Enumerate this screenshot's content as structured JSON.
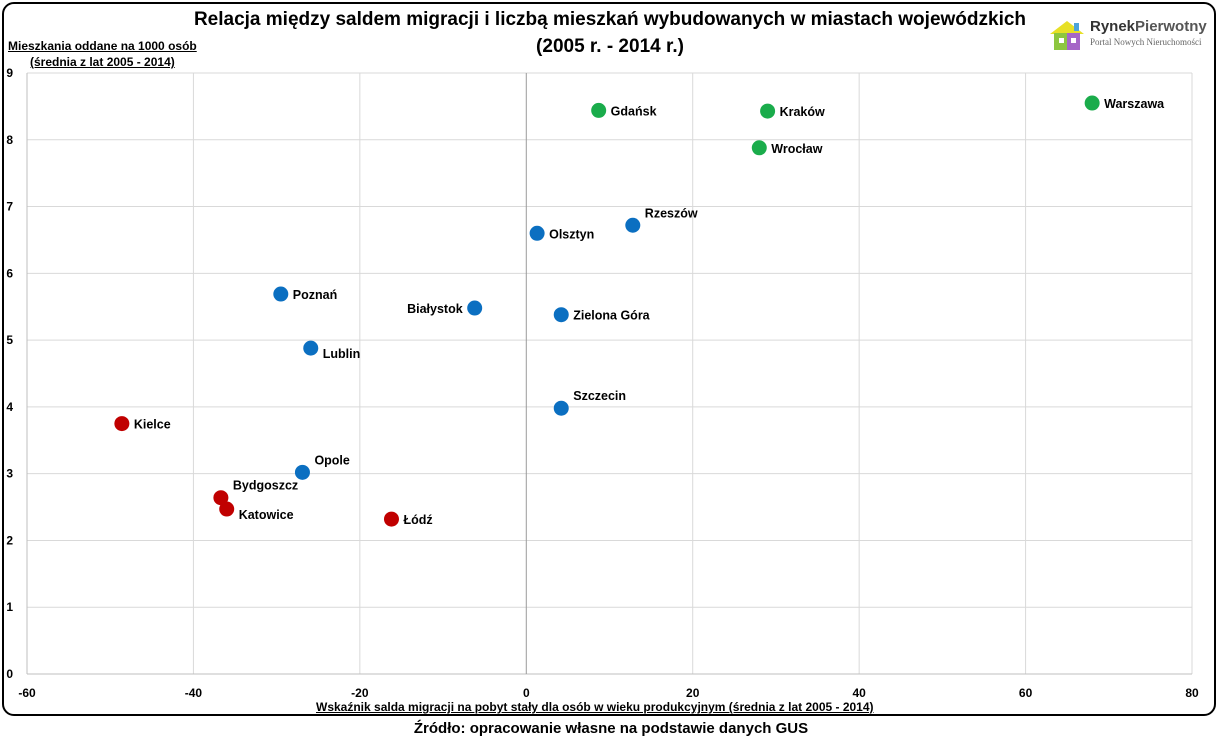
{
  "title_line1": "Relacja między saldem migracji i liczbą mieszkań wybudowanych w miastach wojewódzkich",
  "title_line2": "(2005 r. - 2014 r.)",
  "ylabel_line1": "Mieszkania oddane na 1000 osób",
  "ylabel_line2": "(średnia z lat 2005 - 2014)",
  "xlabel": "Wskaźnik salda migracji na pobyt stały dla osób w wieku produkcyjnym (średnia z lat 2005 - 2014)",
  "source": "Źródło: opracowanie własne na podstawie danych GUS",
  "logo": {
    "name_part1": "Rynek",
    "name_part2": "Pierwotny",
    "tagline": "Portal Nowych Nieruchomości"
  },
  "colors": {
    "green": "#1aac4b",
    "blue": "#0b6fc1",
    "red": "#c00000",
    "grid": "#d9d9d9"
  },
  "chart_data": {
    "type": "scatter",
    "xlim": [
      -60,
      80
    ],
    "ylim": [
      0,
      9
    ],
    "xticks": [
      "-60",
      "-40",
      "-20",
      "0",
      "20",
      "40",
      "60",
      "80"
    ],
    "yticks": [
      "0",
      "1",
      "2",
      "3",
      "4",
      "5",
      "6",
      "7",
      "8",
      "9"
    ],
    "grid": true,
    "points": [
      {
        "label": "Warszawa",
        "x": 68.0,
        "y": 8.55,
        "group": "green",
        "anchor": "right"
      },
      {
        "label": "Kraków",
        "x": 29.0,
        "y": 8.43,
        "group": "green",
        "anchor": "right"
      },
      {
        "label": "Gdańsk",
        "x": 8.7,
        "y": 8.44,
        "group": "green",
        "anchor": "right"
      },
      {
        "label": "Wrocław",
        "x": 28.0,
        "y": 7.88,
        "group": "green",
        "anchor": "right"
      },
      {
        "label": "Rzeszów",
        "x": 12.8,
        "y": 6.72,
        "group": "blue",
        "anchor": "right-up"
      },
      {
        "label": "Olsztyn",
        "x": 1.3,
        "y": 6.6,
        "group": "blue",
        "anchor": "right"
      },
      {
        "label": "Poznań",
        "x": -29.5,
        "y": 5.69,
        "group": "blue",
        "anchor": "right"
      },
      {
        "label": "Białystok",
        "x": -6.2,
        "y": 5.48,
        "group": "blue",
        "anchor": "left"
      },
      {
        "label": "Zielona Góra",
        "x": 4.2,
        "y": 5.38,
        "group": "blue",
        "anchor": "right"
      },
      {
        "label": "Lublin",
        "x": -25.9,
        "y": 4.88,
        "group": "blue",
        "anchor": "right-down"
      },
      {
        "label": "Szczecin",
        "x": 4.2,
        "y": 3.98,
        "group": "blue",
        "anchor": "right-up"
      },
      {
        "label": "Kielce",
        "x": -48.6,
        "y": 3.75,
        "group": "red",
        "anchor": "right"
      },
      {
        "label": "Opole",
        "x": -26.9,
        "y": 3.02,
        "group": "blue",
        "anchor": "right-up"
      },
      {
        "label": "Bydgoszcz",
        "x": -36.7,
        "y": 2.64,
        "group": "red",
        "anchor": "right-up"
      },
      {
        "label": "Katowice",
        "x": -36.0,
        "y": 2.47,
        "group": "red",
        "anchor": "right-down"
      },
      {
        "label": "Łódź",
        "x": -16.2,
        "y": 2.32,
        "group": "red",
        "anchor": "right"
      }
    ]
  }
}
